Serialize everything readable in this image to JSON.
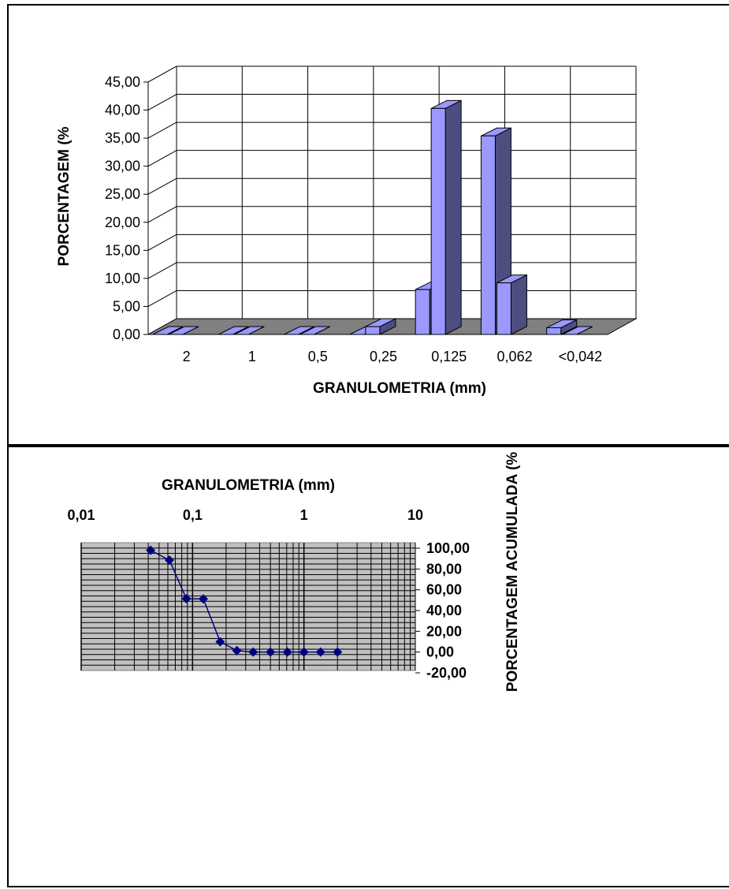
{
  "chart_data": [
    {
      "type": "bar",
      "variant": "3d-column",
      "xlabel": "GRANULOMETRIA (mm)",
      "ylabel": "PORCENTAGEM (%",
      "categories": [
        "2",
        "1",
        "0,5",
        "0,25",
        "0,125",
        "0,062",
        "<0,042"
      ],
      "ylim": [
        0,
        45
      ],
      "ytick_labels": [
        "0,00",
        "5,00",
        "10,00",
        "15,00",
        "20,00",
        "25,00",
        "30,00",
        "35,00",
        "40,00",
        "45,00"
      ],
      "series": [
        {
          "values": [
            0,
            0,
            0,
            0,
            8.0,
            35.4,
            1.2
          ]
        },
        {
          "values": [
            0,
            0,
            0,
            1.4,
            40.3,
            9.2,
            0
          ]
        }
      ],
      "grid": true,
      "colors": {
        "face": "#9999ff",
        "side": "#4d4d80",
        "floor": "#808080"
      }
    },
    {
      "type": "line",
      "xlabel": "GRANULOMETRIA (mm)",
      "ylabel": "PORCENTAGEM ACUMULADA (%",
      "xscale": "log",
      "xlim": [
        0.01,
        10
      ],
      "xtick_labels": [
        "0,01",
        "0,1",
        "1",
        "10"
      ],
      "ylim": [
        -20,
        100
      ],
      "ytick_labels": [
        "-20,00",
        "0,00",
        "20,00",
        "40,00",
        "60,00",
        "80,00",
        "100,00"
      ],
      "x": [
        0.042,
        0.062,
        0.088,
        0.125,
        0.177,
        0.25,
        0.35,
        0.5,
        0.71,
        1.0,
        1.41,
        2.0
      ],
      "y": [
        98.0,
        88.5,
        51.4,
        51.2,
        9.9,
        1.4,
        0.0,
        0.0,
        0.0,
        0.0,
        0.0,
        0.0
      ],
      "grid": true,
      "x_axis_position": "top",
      "y_axis_position": "right",
      "colors": {
        "line": "#000080",
        "plot_bg": "#c0c0c0",
        "grid": "#000000"
      }
    }
  ]
}
